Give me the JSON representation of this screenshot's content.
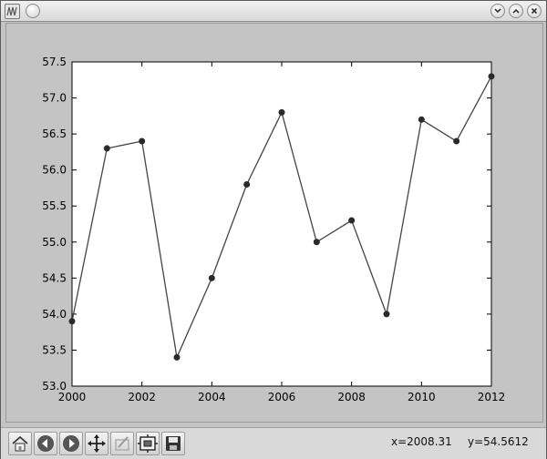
{
  "toolbar": {
    "coord_x": "x=2008.31",
    "coord_y": "y=54.5612",
    "tools": [
      "home-icon",
      "back-arrow-icon",
      "forward-arrow-icon",
      "pan-move-icon",
      "zoom-rect-icon",
      "subplots-config-icon",
      "save-disk-icon"
    ]
  },
  "chart_data": {
    "type": "line",
    "x": [
      2000,
      2001,
      2002,
      2003,
      2004,
      2005,
      2006,
      2007,
      2008,
      2009,
      2010,
      2011,
      2012
    ],
    "series": [
      {
        "values": [
          53.9,
          56.3,
          56.4,
          53.4,
          54.5,
          55.8,
          56.8,
          55.0,
          55.3,
          54.0,
          56.7,
          56.4,
          57.3
        ]
      }
    ],
    "xlim": [
      2000,
      2012
    ],
    "ylim": [
      53.0,
      57.5
    ],
    "x_ticks": [
      "2000",
      "2002",
      "2004",
      "2006",
      "2008",
      "2010",
      "2012"
    ],
    "y_ticks": [
      "53.0",
      "53.5",
      "54.0",
      "54.5",
      "55.0",
      "55.5",
      "56.0",
      "56.5",
      "57.0",
      "57.5"
    ],
    "title": "",
    "xlabel": "",
    "ylabel": "",
    "grid": false,
    "line_color": "#444444",
    "marker_color": "#2a2a2a"
  }
}
